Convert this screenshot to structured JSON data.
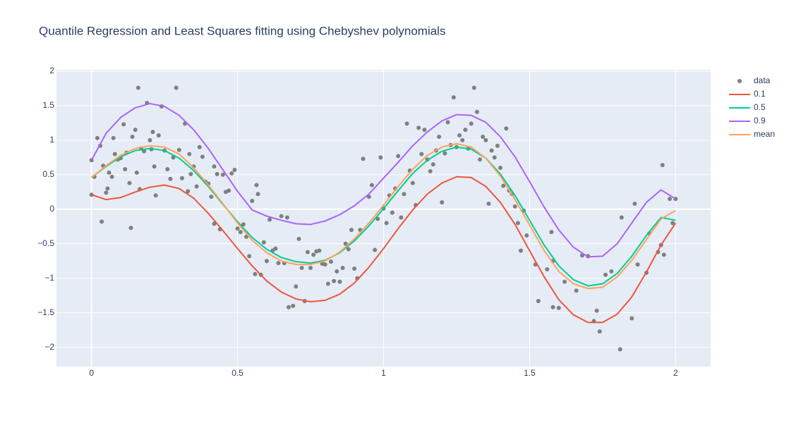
{
  "chart_data": {
    "type": "scatter",
    "title": "Quantile Regression and Least Squares fitting using Chebyshev polynomials",
    "xlim": [
      -0.12,
      2.12
    ],
    "ylim": [
      -2.28,
      2.02
    ],
    "xticks": [
      0,
      0.5,
      1,
      1.5,
      2
    ],
    "yticks": [
      {
        "value": -2,
        "label": "−2"
      },
      {
        "value": -1.5,
        "label": "−1.5"
      },
      {
        "value": -1,
        "label": "−1"
      },
      {
        "value": -0.5,
        "label": "−0.5"
      },
      0,
      0.5,
      1,
      1.5,
      2
    ],
    "grid": true,
    "legend": "top-right",
    "series": [
      {
        "name": "data",
        "mode": "markers",
        "color": "#7f7f7f",
        "x": [
          0,
          0,
          0.01,
          0.02,
          0.03,
          0.035,
          0.04,
          0.05,
          0.055,
          0.06,
          0.07,
          0.075,
          0.08,
          0.09,
          0.1,
          0.11,
          0.115,
          0.12,
          0.13,
          0.135,
          0.14,
          0.15,
          0.155,
          0.16,
          0.165,
          0.17,
          0.18,
          0.19,
          0.2,
          0.205,
          0.21,
          0.215,
          0.22,
          0.23,
          0.24,
          0.25,
          0.26,
          0.27,
          0.28,
          0.29,
          0.3,
          0.31,
          0.32,
          0.33,
          0.335,
          0.34,
          0.35,
          0.36,
          0.37,
          0.38,
          0.39,
          0.4,
          0.41,
          0.42,
          0.42,
          0.43,
          0.44,
          0.45,
          0.46,
          0.47,
          0.48,
          0.49,
          0.5,
          0.51,
          0.52,
          0.53,
          0.54,
          0.55,
          0.56,
          0.565,
          0.57,
          0.58,
          0.59,
          0.6,
          0.61,
          0.62,
          0.63,
          0.64,
          0.65,
          0.66,
          0.67,
          0.675,
          0.69,
          0.7,
          0.71,
          0.72,
          0.73,
          0.74,
          0.75,
          0.76,
          0.77,
          0.78,
          0.79,
          0.8,
          0.81,
          0.82,
          0.83,
          0.84,
          0.85,
          0.86,
          0.87,
          0.88,
          0.89,
          0.9,
          0.91,
          0.92,
          0.93,
          0.95,
          0.96,
          0.97,
          0.98,
          0.99,
          1,
          1.01,
          1.02,
          1.03,
          1.04,
          1.05,
          1.06,
          1.07,
          1.08,
          1.09,
          1.1,
          1.11,
          1.12,
          1.13,
          1.14,
          1.15,
          1.16,
          1.17,
          1.18,
          1.19,
          1.2,
          1.21,
          1.22,
          1.23,
          1.24,
          1.25,
          1.26,
          1.27,
          1.28,
          1.29,
          1.3,
          1.31,
          1.32,
          1.33,
          1.34,
          1.35,
          1.36,
          1.37,
          1.38,
          1.39,
          1.4,
          1.41,
          1.42,
          1.43,
          1.44,
          1.45,
          1.46,
          1.47,
          1.48,
          1.49,
          1.52,
          1.53,
          1.56,
          1.575,
          1.58,
          1.58,
          1.6,
          1.62,
          1.66,
          1.68,
          1.7,
          1.72,
          1.73,
          1.74,
          1.76,
          1.78,
          1.81,
          1.815,
          1.85,
          1.86,
          1.87,
          1.9,
          1.91,
          1.94,
          1.95,
          1.955,
          1.96,
          1.98,
          1.99,
          2
        ],
        "values": [
          0.71,
          0.21,
          0.47,
          1.03,
          0.92,
          -0.18,
          0.63,
          0.24,
          0.3,
          0.53,
          0.47,
          1.03,
          0.8,
          0.72,
          0.74,
          1.23,
          0.58,
          0.82,
          0.38,
          -0.27,
          1.05,
          1.15,
          0.53,
          1.76,
          0.29,
          0.88,
          0.84,
          1.54,
          1,
          0.87,
          1.12,
          0.62,
          0.2,
          1.07,
          1.49,
          0.85,
          0.58,
          0.44,
          0.75,
          1.76,
          0.86,
          0.45,
          1.24,
          0.26,
          0.8,
          0.51,
          0.62,
          0.33,
          0.9,
          0.76,
          0.4,
          0.37,
          0.18,
          0.62,
          -0.21,
          0.51,
          -0.29,
          0.5,
          0.25,
          0.27,
          0.52,
          0.57,
          -0.28,
          -0.33,
          -0.22,
          -0.4,
          -0.68,
          0.12,
          -0.94,
          0.35,
          0.22,
          -0.95,
          -0.48,
          -0.75,
          -0.15,
          -0.6,
          -0.57,
          -0.78,
          -0.1,
          -0.78,
          -0.12,
          -1.42,
          -1.4,
          -1.12,
          -0.43,
          -0.85,
          -1.33,
          -0.62,
          -0.85,
          -0.66,
          -0.61,
          -0.6,
          -0.79,
          -0.8,
          -1.08,
          -0.76,
          -1.04,
          -0.9,
          -1.05,
          -0.85,
          -0.5,
          -0.58,
          -0.3,
          -0.86,
          -1,
          -0.3,
          0.73,
          0.18,
          0.35,
          -0.59,
          -0.14,
          0.75,
          0.01,
          -0.2,
          0.2,
          -0.05,
          0.3,
          0.77,
          -0.12,
          0.22,
          1.24,
          0.56,
          0.38,
          0.06,
          1.18,
          0.8,
          1.15,
          0.72,
          0.55,
          0.65,
          0.85,
          1.05,
          0.1,
          0.81,
          1.26,
          0.93,
          1.62,
          0.9,
          1.07,
          1,
          1.15,
          0.88,
          1.24,
          1.76,
          1.41,
          0.72,
          1.05,
          1,
          0.08,
          0.85,
          0.75,
          0.92,
          0.6,
          0.34,
          1.17,
          0.27,
          0.22,
          0.04,
          -0.2,
          -0.6,
          -0.02,
          -0.38,
          -0.8,
          -1.33,
          -0.87,
          -0.33,
          -1.42,
          -0.75,
          -1.43,
          -1.05,
          -1.18,
          -0.67,
          -0.68,
          -1.62,
          -1.47,
          -1.77,
          -0.95,
          -0.9,
          -2.03,
          -0.12,
          -1.58,
          0.08,
          -0.8,
          -0.92,
          -0.35,
          -0.62,
          -0.52,
          0.64,
          -0.66,
          0.15,
          -0.2,
          0.15
        ]
      },
      {
        "name": "0.1",
        "mode": "lines",
        "color": "#EF553B",
        "x": [
          0,
          0.05,
          0.1,
          0.15,
          0.2,
          0.25,
          0.3,
          0.35,
          0.4,
          0.45,
          0.5,
          0.55,
          0.6,
          0.65,
          0.7,
          0.75,
          0.8,
          0.85,
          0.9,
          0.95,
          1,
          1.05,
          1.1,
          1.15,
          1.2,
          1.25,
          1.3,
          1.35,
          1.4,
          1.45,
          1.5,
          1.55,
          1.6,
          1.65,
          1.7,
          1.75,
          1.8,
          1.85,
          1.9,
          1.95,
          2
        ],
        "values": [
          0.21,
          0.14,
          0.17,
          0.25,
          0.32,
          0.35,
          0.3,
          0.16,
          -0.06,
          -0.31,
          -0.57,
          -0.82,
          -1.04,
          -1.2,
          -1.3,
          -1.34,
          -1.32,
          -1.23,
          -1.07,
          -0.84,
          -0.57,
          -0.28,
          -0.01,
          0.22,
          0.38,
          0.47,
          0.46,
          0.33,
          0.1,
          -0.22,
          -0.6,
          -0.98,
          -1.31,
          -1.53,
          -1.64,
          -1.64,
          -1.52,
          -1.27,
          -0.91,
          -0.52,
          -0.2
        ]
      },
      {
        "name": "0.5",
        "mode": "lines",
        "color": "#00CC96",
        "x": [
          0,
          0.05,
          0.1,
          0.15,
          0.2,
          0.25,
          0.3,
          0.35,
          0.4,
          0.45,
          0.5,
          0.55,
          0.6,
          0.65,
          0.7,
          0.75,
          0.8,
          0.85,
          0.9,
          0.95,
          1,
          1.05,
          1.1,
          1.15,
          1.2,
          1.25,
          1.3,
          1.35,
          1.4,
          1.45,
          1.5,
          1.55,
          1.6,
          1.65,
          1.7,
          1.75,
          1.8,
          1.85,
          1.9,
          1.95,
          2
        ],
        "values": [
          0.46,
          0.62,
          0.76,
          0.85,
          0.88,
          0.85,
          0.74,
          0.56,
          0.33,
          0.07,
          -0.18,
          -0.41,
          -0.58,
          -0.7,
          -0.76,
          -0.78,
          -0.74,
          -0.63,
          -0.46,
          -0.24,
          0.01,
          0.27,
          0.52,
          0.71,
          0.84,
          0.9,
          0.87,
          0.74,
          0.51,
          0.2,
          -0.16,
          -0.52,
          -0.82,
          -1.02,
          -1.11,
          -1.08,
          -0.93,
          -0.68,
          -0.38,
          -0.12,
          -0.16
        ]
      },
      {
        "name": "0.9",
        "mode": "lines",
        "color": "#AB63FA",
        "x": [
          0,
          0.05,
          0.1,
          0.15,
          0.2,
          0.25,
          0.3,
          0.35,
          0.4,
          0.45,
          0.5,
          0.55,
          0.6,
          0.65,
          0.7,
          0.75,
          0.8,
          0.85,
          0.9,
          0.95,
          1,
          1.05,
          1.1,
          1.15,
          1.2,
          1.25,
          1.3,
          1.35,
          1.4,
          1.45,
          1.5,
          1.55,
          1.6,
          1.65,
          1.7,
          1.75,
          1.8,
          1.85,
          1.9,
          1.95,
          2
        ],
        "values": [
          0.71,
          1.1,
          1.33,
          1.47,
          1.53,
          1.49,
          1.36,
          1.15,
          0.88,
          0.57,
          0.26,
          -0.01,
          -0.1,
          -0.16,
          -0.21,
          -0.22,
          -0.17,
          -0.08,
          0.05,
          0.22,
          0.45,
          0.68,
          0.92,
          1.12,
          1.28,
          1.37,
          1.36,
          1.26,
          1.05,
          0.76,
          0.4,
          0.03,
          -0.3,
          -0.55,
          -0.69,
          -0.68,
          -0.5,
          -0.2,
          0.1,
          0.28,
          0.15
        ]
      },
      {
        "name": "mean",
        "mode": "lines",
        "color": "#FFA15A",
        "x": [
          0,
          0.05,
          0.1,
          0.15,
          0.2,
          0.25,
          0.3,
          0.35,
          0.4,
          0.45,
          0.5,
          0.55,
          0.6,
          0.65,
          0.7,
          0.75,
          0.8,
          0.85,
          0.9,
          0.95,
          1,
          1.05,
          1.1,
          1.15,
          1.2,
          1.25,
          1.3,
          1.35,
          1.4,
          1.45,
          1.5,
          1.55,
          1.6,
          1.65,
          1.7,
          1.75,
          1.8,
          1.85,
          1.9,
          1.95,
          2
        ],
        "values": [
          0.46,
          0.63,
          0.78,
          0.88,
          0.92,
          0.9,
          0.8,
          0.6,
          0.35,
          0.08,
          -0.2,
          -0.45,
          -0.63,
          -0.75,
          -0.8,
          -0.8,
          -0.75,
          -0.62,
          -0.43,
          -0.2,
          0.06,
          0.33,
          0.58,
          0.78,
          0.9,
          0.95,
          0.9,
          0.74,
          0.48,
          0.14,
          -0.23,
          -0.6,
          -0.9,
          -1.08,
          -1.15,
          -1.13,
          -0.98,
          -0.74,
          -0.44,
          -0.14,
          -0.02
        ]
      }
    ]
  }
}
